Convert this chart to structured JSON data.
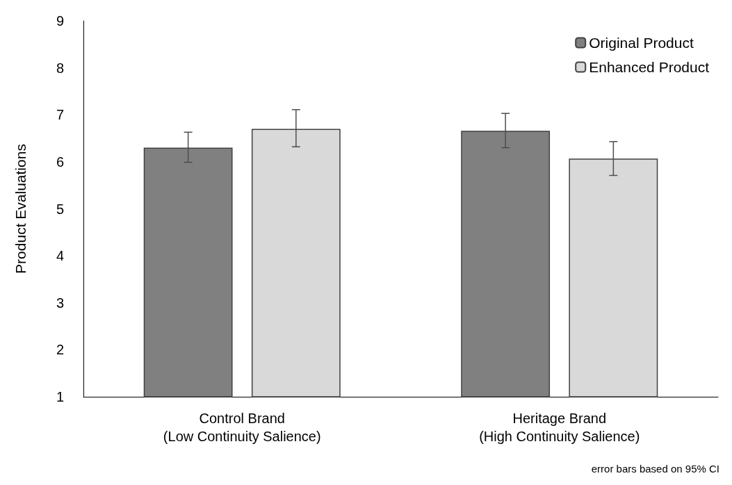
{
  "chart_data": {
    "type": "bar",
    "ylabel": "Product Evaluations",
    "categories": [
      "Control Brand\n(Low Continuity Salience)",
      "Heritage Brand\n(High Continuity Salience)"
    ],
    "series": [
      {
        "name": "Original Product",
        "color": "#808080",
        "values": [
          6.3,
          6.66
        ],
        "errors": [
          [
            5.99,
            6.63
          ],
          [
            6.3,
            7.03
          ]
        ]
      },
      {
        "name": "Enhanced Product",
        "color": "#d9d9d9",
        "values": [
          6.7,
          6.07
        ],
        "errors": [
          [
            6.32,
            7.11
          ],
          [
            5.71,
            6.43
          ]
        ]
      }
    ],
    "ylim": [
      1,
      9
    ],
    "yticks": [
      1,
      2,
      3,
      4,
      5,
      6,
      7,
      8,
      9
    ],
    "grid": false,
    "legend": "top right",
    "annotations": [
      "error bars based on 95% CI"
    ]
  }
}
